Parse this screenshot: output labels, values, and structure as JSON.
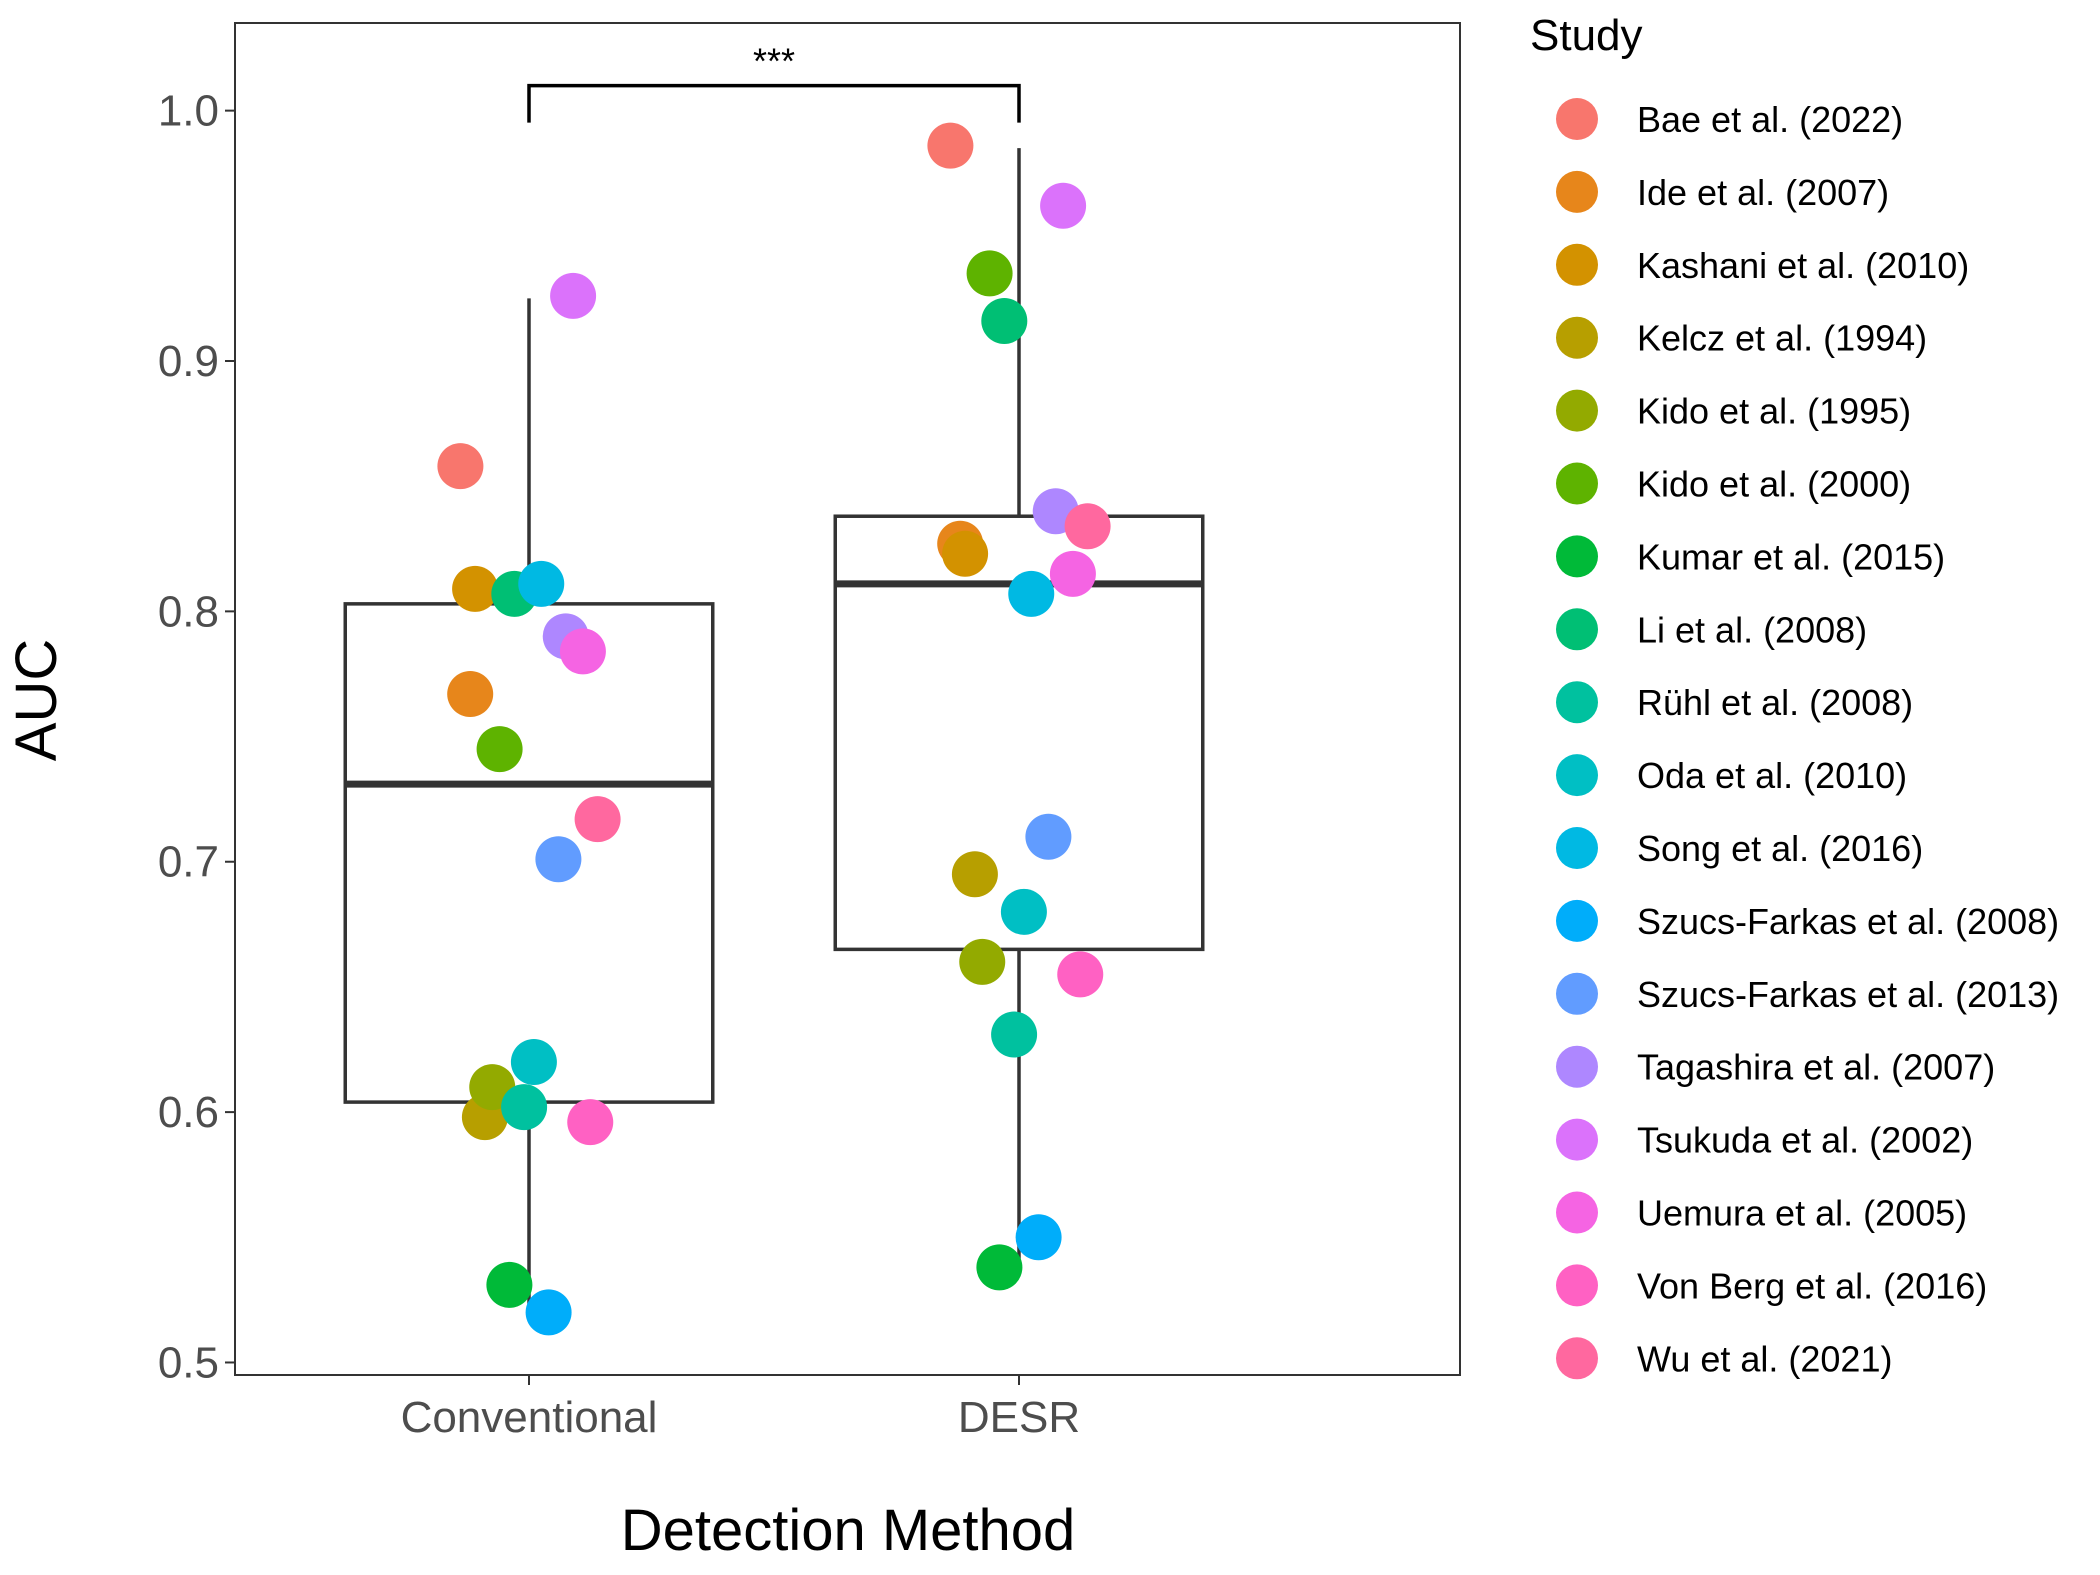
{
  "chart_data": {
    "type": "boxplot",
    "xlabel": "Detection Method",
    "ylabel": "AUC",
    "categories": [
      "Conventional",
      "DESR"
    ],
    "ylim": [
      0.495,
      1.035
    ],
    "yticks": [
      0.5,
      0.6,
      0.7,
      0.8,
      0.9,
      1.0
    ],
    "ytick_labels": [
      "0.5",
      "0.6",
      "0.7",
      "0.8",
      "0.9",
      "1.0"
    ],
    "grid": false,
    "legend_position": "right",
    "legend_title": "Study",
    "significance": {
      "label": "***",
      "between": [
        "Conventional",
        "DESR"
      ],
      "y": 1.01
    },
    "boxes": [
      {
        "category": "Conventional",
        "min": 0.52,
        "q1": 0.604,
        "median": 0.731,
        "q3": 0.803,
        "max": 0.925
      },
      {
        "category": "DESR",
        "min": 0.538,
        "q1": 0.665,
        "median": 0.811,
        "q3": 0.838,
        "max": 0.985
      }
    ],
    "series": [
      {
        "name": "Bae et al. (2022)",
        "color": "#F8766D",
        "points": [
          {
            "x": "Conventional",
            "y": 0.858,
            "jitter": -0.14
          },
          {
            "x": "DESR",
            "y": 0.986,
            "jitter": -0.14
          }
        ]
      },
      {
        "name": "Ide et al. (2007)",
        "color": "#E7861B",
        "points": [
          {
            "x": "Conventional",
            "y": 0.767,
            "jitter": -0.12
          },
          {
            "x": "DESR",
            "y": 0.827,
            "jitter": -0.12
          }
        ]
      },
      {
        "name": "Kashani et al. (2010)",
        "color": "#D39200",
        "points": [
          {
            "x": "Conventional",
            "y": 0.809,
            "jitter": -0.11
          },
          {
            "x": "DESR",
            "y": 0.823,
            "jitter": -0.11
          }
        ]
      },
      {
        "name": "Kelcz et al. (1994)",
        "color": "#B79F00",
        "points": [
          {
            "x": "Conventional",
            "y": 0.598,
            "jitter": -0.09
          },
          {
            "x": "DESR",
            "y": 0.695,
            "jitter": -0.09
          }
        ]
      },
      {
        "name": "Kido et al. (1995)",
        "color": "#93AA00",
        "points": [
          {
            "x": "Conventional",
            "y": 0.61,
            "jitter": -0.075
          },
          {
            "x": "DESR",
            "y": 0.66,
            "jitter": -0.075
          }
        ]
      },
      {
        "name": "Kido et al. (2000)",
        "color": "#5EB300",
        "points": [
          {
            "x": "Conventional",
            "y": 0.745,
            "jitter": -0.06
          },
          {
            "x": "DESR",
            "y": 0.935,
            "jitter": -0.06
          }
        ]
      },
      {
        "name": "Kumar et al. (2015)",
        "color": "#00BA38",
        "points": [
          {
            "x": "Conventional",
            "y": 0.531,
            "jitter": -0.04
          },
          {
            "x": "DESR",
            "y": 0.538,
            "jitter": -0.04
          }
        ]
      },
      {
        "name": "Li et al. (2008)",
        "color": "#00BF74",
        "points": [
          {
            "x": "Conventional",
            "y": 0.807,
            "jitter": -0.03
          },
          {
            "x": "DESR",
            "y": 0.916,
            "jitter": -0.03
          }
        ]
      },
      {
        "name": "Rühl et al. (2008)",
        "color": "#00C19F",
        "points": [
          {
            "x": "Conventional",
            "y": 0.602,
            "jitter": -0.01
          },
          {
            "x": "DESR",
            "y": 0.631,
            "jitter": -0.01
          }
        ]
      },
      {
        "name": "Oda et al. (2010)",
        "color": "#00BFC4",
        "points": [
          {
            "x": "Conventional",
            "y": 0.62,
            "jitter": 0.01
          },
          {
            "x": "DESR",
            "y": 0.68,
            "jitter": 0.01
          }
        ]
      },
      {
        "name": "Song et al. (2016)",
        "color": "#00B9E3",
        "points": [
          {
            "x": "Conventional",
            "y": 0.811,
            "jitter": 0.025
          },
          {
            "x": "DESR",
            "y": 0.807,
            "jitter": 0.025
          }
        ]
      },
      {
        "name": "Szucs-Farkas et al. (2008)",
        "color": "#00ADFA",
        "points": [
          {
            "x": "Conventional",
            "y": 0.52,
            "jitter": 0.04
          },
          {
            "x": "DESR",
            "y": 0.55,
            "jitter": 0.04
          }
        ]
      },
      {
        "name": "Szucs-Farkas et al. (2013)",
        "color": "#619CFF",
        "points": [
          {
            "x": "Conventional",
            "y": 0.701,
            "jitter": 0.06
          },
          {
            "x": "DESR",
            "y": 0.71,
            "jitter": 0.06
          }
        ]
      },
      {
        "name": "Tagashira et al. (2007)",
        "color": "#AE87FF",
        "points": [
          {
            "x": "Conventional",
            "y": 0.79,
            "jitter": 0.075
          },
          {
            "x": "DESR",
            "y": 0.84,
            "jitter": 0.075
          }
        ]
      },
      {
        "name": "Tsukuda et al. (2002)",
        "color": "#DB72FB",
        "points": [
          {
            "x": "Conventional",
            "y": 0.926,
            "jitter": 0.09
          },
          {
            "x": "DESR",
            "y": 0.962,
            "jitter": 0.09
          }
        ]
      },
      {
        "name": "Uemura et al. (2005)",
        "color": "#F564E3",
        "points": [
          {
            "x": "Conventional",
            "y": 0.784,
            "jitter": 0.11
          },
          {
            "x": "DESR",
            "y": 0.815,
            "jitter": 0.11
          }
        ]
      },
      {
        "name": "Von Berg et al. (2016)",
        "color": "#FF61C3",
        "points": [
          {
            "x": "Conventional",
            "y": 0.596,
            "jitter": 0.125
          },
          {
            "x": "DESR",
            "y": 0.655,
            "jitter": 0.125
          }
        ]
      },
      {
        "name": "Wu et al. (2021)",
        "color": "#FF689F",
        "points": [
          {
            "x": "Conventional",
            "y": 0.717,
            "jitter": 0.14
          },
          {
            "x": "DESR",
            "y": 0.834,
            "jitter": 0.14
          }
        ]
      }
    ]
  }
}
